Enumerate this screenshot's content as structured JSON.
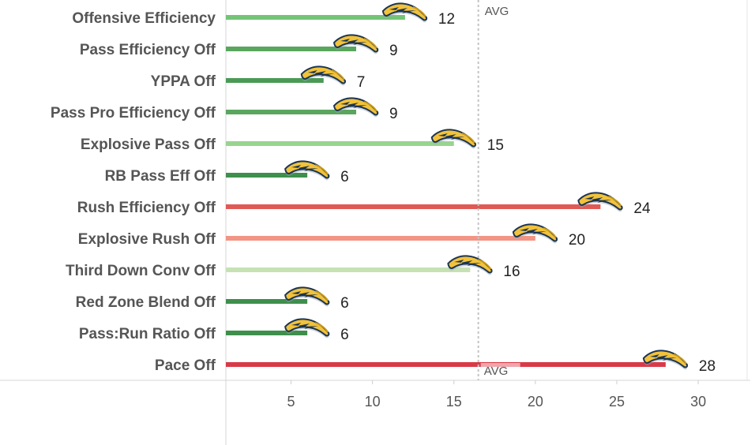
{
  "chart_data": {
    "type": "bar",
    "orientation": "horizontal",
    "categories": [
      "Offensive Efficiency",
      "Pass Efficiency Off",
      "YPPA Off",
      "Pass Pro Efficiency Off",
      "Explosive Pass Off",
      "RB Pass Eff Off",
      "Rush Efficiency Off",
      "Explosive Rush Off",
      "Third Down Conv Off",
      "Red Zone Blend Off",
      "Pass:Run Ratio Off",
      "Pace Off"
    ],
    "values": [
      12,
      9,
      7,
      9,
      15,
      6,
      24,
      20,
      16,
      6,
      6,
      28
    ],
    "bar_colors": [
      "#74c476",
      "#5aa65e",
      "#4a9a55",
      "#5aa65e",
      "#98d48f",
      "#3f8f4c",
      "#e05a55",
      "#f29585",
      "#c6e2b4",
      "#3f8f4c",
      "#3f8f4c",
      "#d93a47"
    ],
    "reference_line": {
      "label": "AVG",
      "value": 16.5
    },
    "xlim": [
      1,
      33
    ],
    "xticks": [
      5,
      10,
      15,
      20,
      25,
      30
    ],
    "xlabel": "",
    "ylabel": "",
    "title": "",
    "grid": false,
    "marker_icon": "team-logo-icon",
    "logo_colors": {
      "fill": "#f2c23a",
      "outline": "#1b3553",
      "shade": "#c99a1a"
    }
  }
}
